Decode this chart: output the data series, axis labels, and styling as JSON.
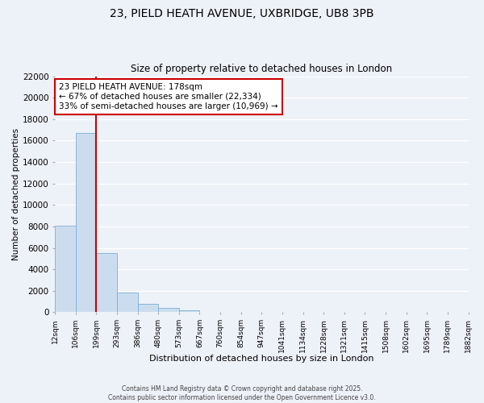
{
  "title1": "23, PIELD HEATH AVENUE, UXBRIDGE, UB8 3PB",
  "title2": "Size of property relative to detached houses in London",
  "bar_values": [
    8100,
    16700,
    5500,
    1850,
    750,
    400,
    150,
    50,
    0,
    0,
    0,
    0,
    0,
    0,
    0,
    0,
    0,
    0,
    0,
    0
  ],
  "categories": [
    "12sqm",
    "106sqm",
    "199sqm",
    "293sqm",
    "386sqm",
    "480sqm",
    "573sqm",
    "667sqm",
    "760sqm",
    "854sqm",
    "947sqm",
    "1041sqm",
    "1134sqm",
    "1228sqm",
    "1321sqm",
    "1415sqm",
    "1508sqm",
    "1602sqm",
    "1695sqm",
    "1789sqm",
    "1882sqm"
  ],
  "xlabel": "Distribution of detached houses by size in London",
  "ylabel": "Number of detached properties",
  "ylim": [
    0,
    22000
  ],
  "yticks": [
    0,
    2000,
    4000,
    6000,
    8000,
    10000,
    12000,
    14000,
    16000,
    18000,
    20000,
    22000
  ],
  "bar_color": "#ccdcef",
  "bar_edge_color": "#7bafd4",
  "vline_x": 2,
  "vline_color": "#cc0000",
  "annotation_title": "23 PIELD HEATH AVENUE: 178sqm",
  "annotation_line1": "← 67% of detached houses are smaller (22,334)",
  "annotation_line2": "33% of semi-detached houses are larger (10,969) →",
  "annotation_box_color": "#ffffff",
  "annotation_box_edge_color": "#cc0000",
  "footer1": "Contains HM Land Registry data © Crown copyright and database right 2025.",
  "footer2": "Contains public sector information licensed under the Open Government Licence v3.0.",
  "background_color": "#edf1f8",
  "grid_color": "#ffffff"
}
